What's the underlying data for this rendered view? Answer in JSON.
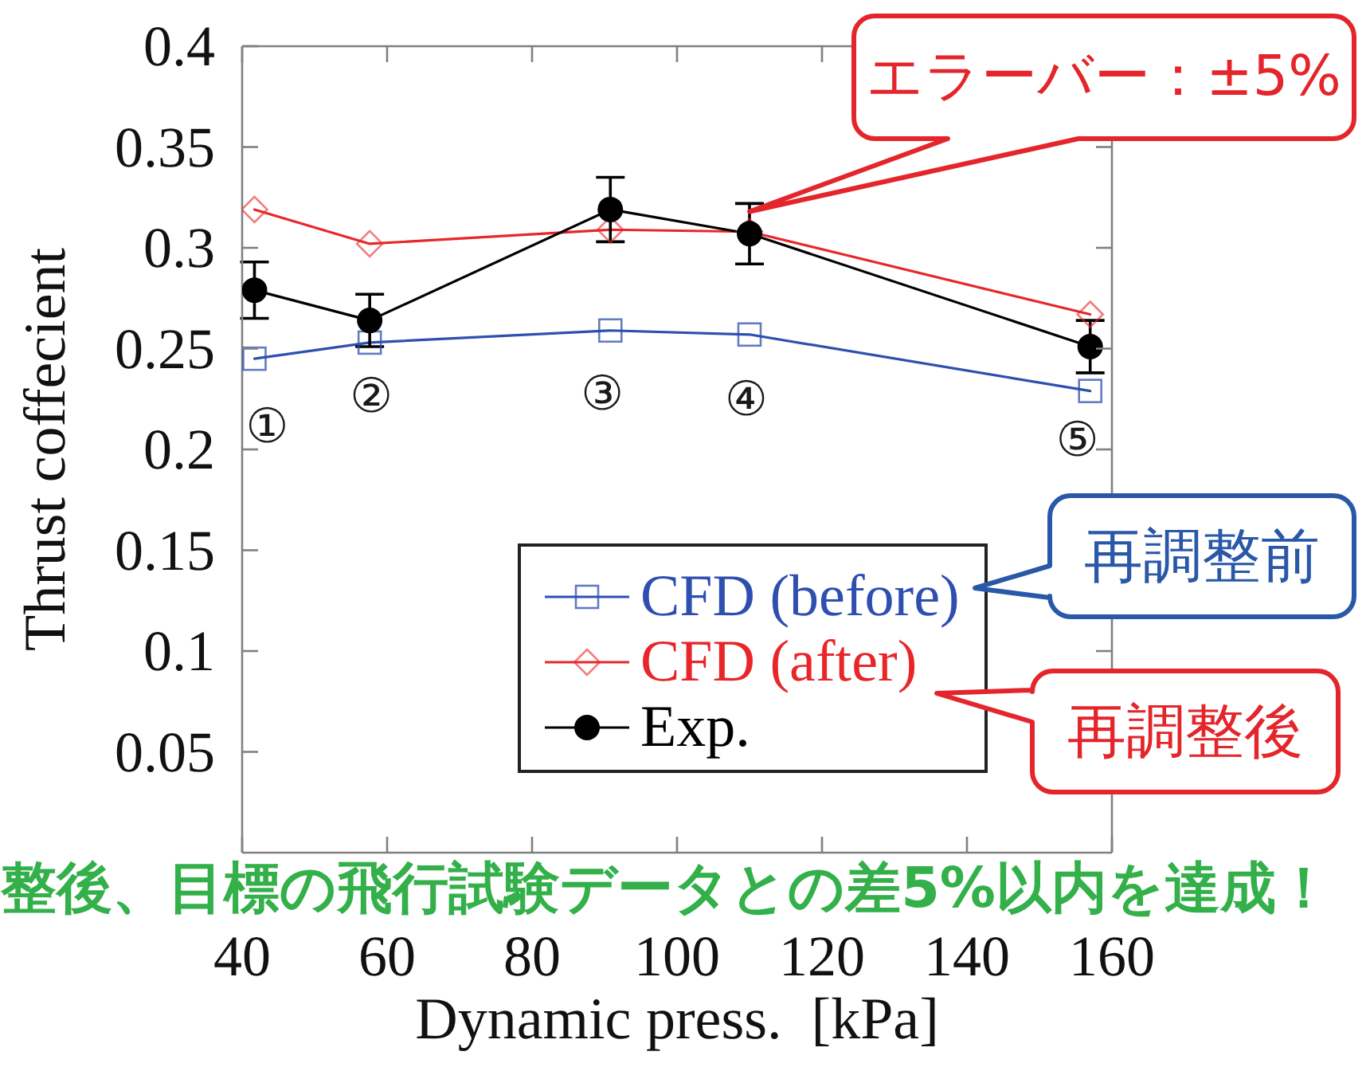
{
  "chart_data": {
    "type": "line",
    "xlabel": "Dynamic press.  [kPa]",
    "ylabel": "Thrust coffecient",
    "x": [
      41.7,
      57.6,
      90.8,
      110,
      157
    ],
    "xlim": [
      40,
      160
    ],
    "xticks": [
      40,
      60,
      80,
      100,
      120,
      140,
      160
    ],
    "ylim": [
      0,
      0.4
    ],
    "yticks": [
      0.05,
      0.1,
      0.15,
      0.2,
      0.25,
      0.3,
      0.35,
      0.4
    ],
    "legend": "bottom right",
    "line_style": "solid",
    "series": [
      {
        "name": "CFD (before)",
        "color": "#2f4fb0",
        "marker": "square",
        "values": [
          0.245,
          0.253,
          0.259,
          0.257,
          0.229
        ]
      },
      {
        "name": "CFD (after)",
        "color": "#e8262a",
        "marker": "diamond",
        "values": [
          0.319,
          0.302,
          0.309,
          0.308,
          0.267
        ]
      },
      {
        "name": "Exp.",
        "color": "#000000",
        "marker": "circle",
        "values": [
          0.279,
          0.264,
          0.319,
          0.307,
          0.251
        ],
        "errors": [
          0.014,
          0.013,
          0.016,
          0.015,
          0.013
        ]
      }
    ],
    "annotations": [
      {
        "text": "エラーバー：±5%",
        "x": 110,
        "y": 0.318
      },
      "再調整前",
      "再調整後",
      "整後、目標の飛行試験データとの差5%以内を達成！",
      "①",
      "②",
      "③",
      "④",
      "⑤"
    ]
  }
}
